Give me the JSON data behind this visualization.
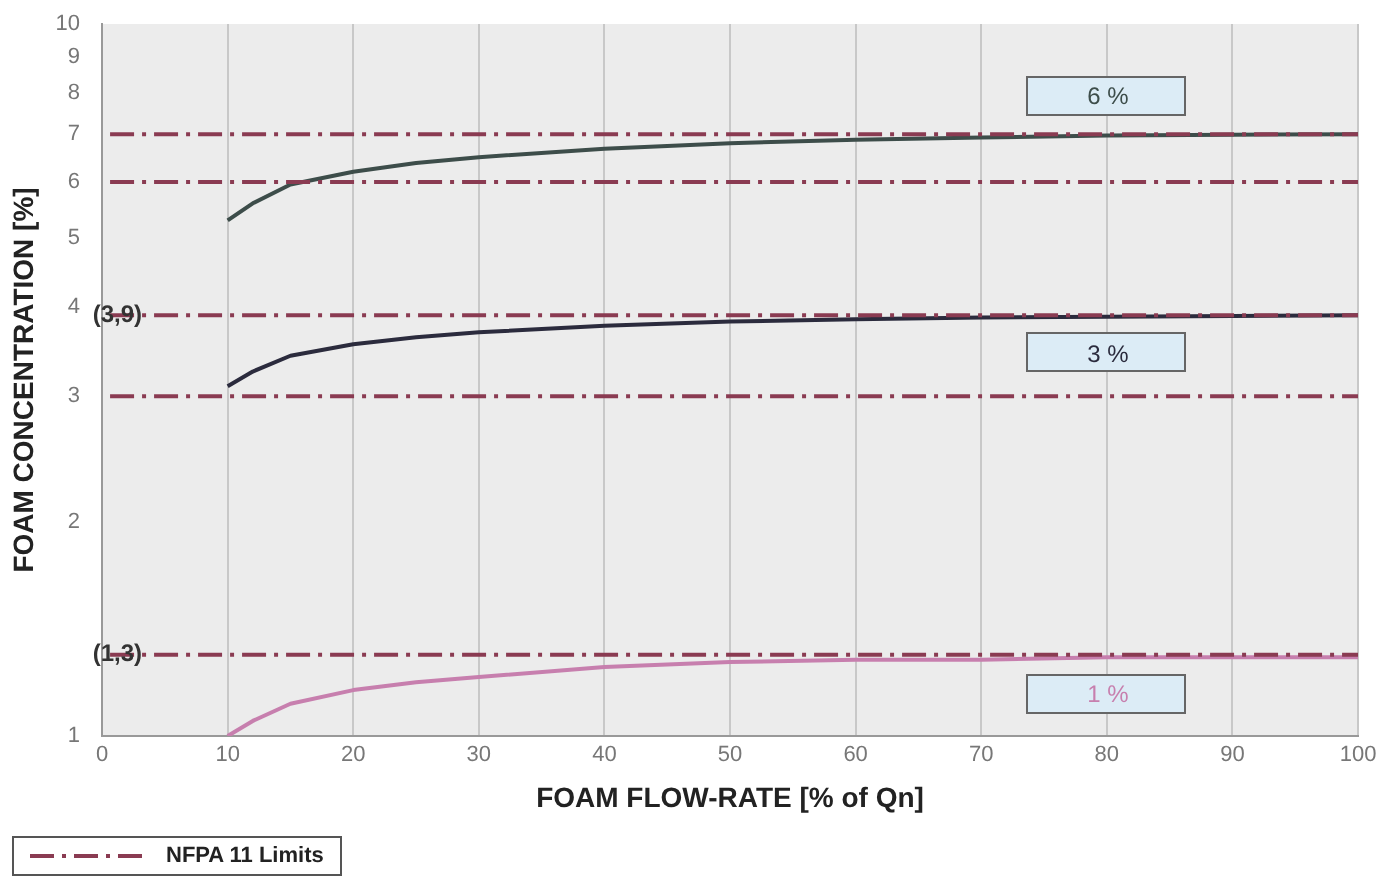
{
  "chart_data": {
    "type": "line",
    "xlabel": "FOAM FLOW-RATE [% of Qn]",
    "ylabel": "FOAM CONCENTRATION [%]",
    "x": [
      10,
      12,
      15,
      20,
      25,
      30,
      40,
      50,
      60,
      70,
      80,
      90,
      100
    ],
    "series": [
      {
        "name": "6 %",
        "color": "#3d4d4a",
        "values": [
          5.3,
          5.6,
          5.95,
          6.2,
          6.38,
          6.5,
          6.68,
          6.8,
          6.88,
          6.93,
          6.97,
          6.99,
          7.0
        ]
      },
      {
        "name": "3 %",
        "color": "#2b2b3d",
        "values": [
          3.1,
          3.25,
          3.42,
          3.55,
          3.63,
          3.69,
          3.77,
          3.82,
          3.85,
          3.87,
          3.88,
          3.89,
          3.9
        ]
      },
      {
        "name": "1 %",
        "color": "#c77fae",
        "values": [
          1.0,
          1.05,
          1.11,
          1.16,
          1.19,
          1.21,
          1.25,
          1.27,
          1.28,
          1.28,
          1.29,
          1.29,
          1.29
        ]
      }
    ],
    "xlim": [
      0,
      100
    ],
    "xticks": [
      0,
      10,
      20,
      30,
      40,
      50,
      60,
      70,
      80,
      90,
      100
    ],
    "ylim": [
      1,
      10
    ],
    "yticks": [
      1,
      2,
      3,
      4,
      5,
      6,
      7,
      8,
      9,
      10
    ],
    "log": "y",
    "grid": "x",
    "marker": "none",
    "line_style": "solid",
    "ref_lines": [
      {
        "axis": "y",
        "value": 7,
        "label": null,
        "color": "#8a3b52",
        "line_style": "dashdot"
      },
      {
        "axis": "y",
        "value": 6,
        "label": null,
        "color": "#8a3b52",
        "line_style": "dashdot"
      },
      {
        "axis": "y",
        "value": 3.9,
        "label": "(3,9)",
        "color": "#8a3b52",
        "line_style": "dashdot"
      },
      {
        "axis": "y",
        "value": 3,
        "label": null,
        "color": "#8a3b52",
        "line_style": "dashdot"
      },
      {
        "axis": "y",
        "value": 1.3,
        "label": "(1,3)",
        "color": "#8a3b52",
        "line_style": "dashdot"
      }
    ],
    "legend_title": "NFPA 11 Limits",
    "legend": "bottom left"
  }
}
